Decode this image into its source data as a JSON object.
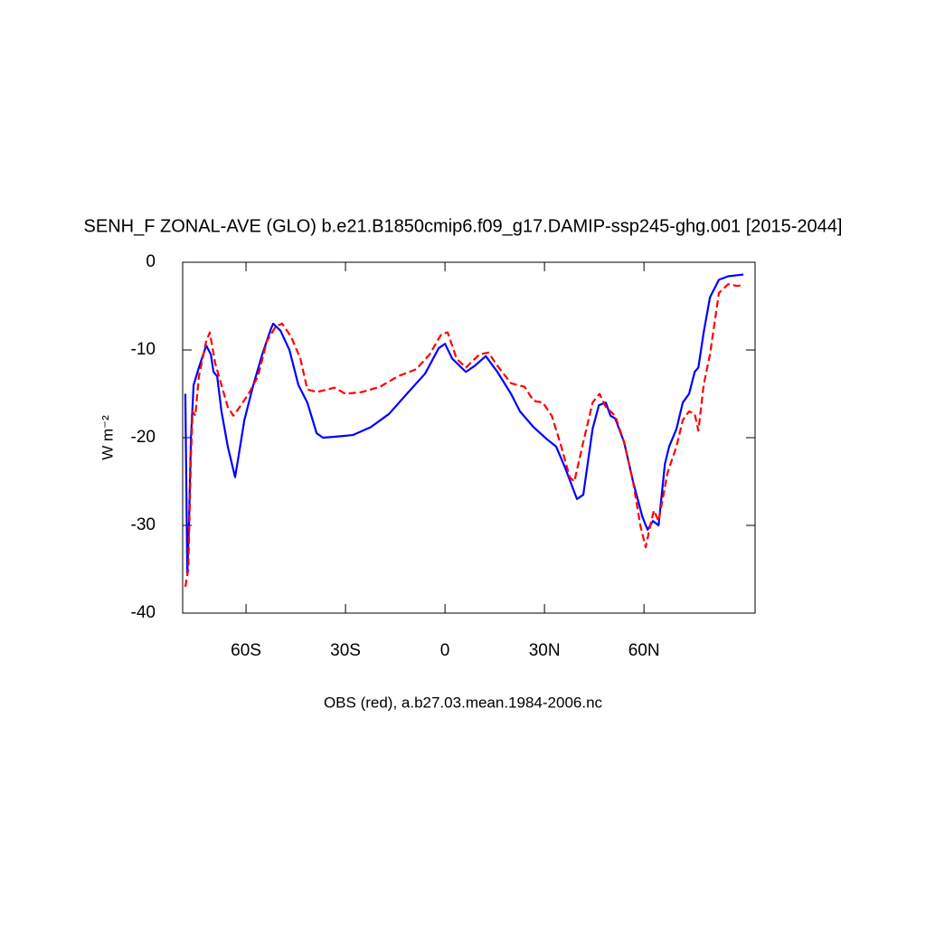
{
  "chart_data": {
    "type": "line",
    "title": "SENH_F ZONAL-AVE (GLO) b.e21.B1850cmip6.f09_g17.DAMIP-ssp245-ghg.001 [2015-2044]",
    "x_label": "OBS (red), a.b27.03.mean.1984-2006.nc",
    "y_label": "W m⁻²",
    "xlim": [
      -79.1,
      93.5
    ],
    "ylim": [
      -40,
      0
    ],
    "xticks": [
      {
        "value": -60,
        "label": "60S"
      },
      {
        "value": -30,
        "label": "30S"
      },
      0,
      {
        "value": 30,
        "label": "30N"
      },
      {
        "value": 60,
        "label": "60N"
      }
    ],
    "yticks": [
      0,
      -10,
      -20,
      -30,
      -40
    ],
    "grid": false,
    "series": [
      {
        "color": "#0000ff",
        "dash": false,
        "x": [
          -78.3,
          -77.7,
          -77.2,
          -76.6,
          -75.8,
          -74.2,
          -72.0,
          -70.6,
          -69.8,
          -68.7,
          -67.4,
          -65.5,
          -63.3,
          -62.2,
          -60.5,
          -57.8,
          -55.1,
          -52.4,
          -51.8,
          -49.6,
          -46.9,
          -44.2,
          -41.5,
          -38.7,
          -36.8,
          -33.3,
          -27.8,
          -22.4,
          -16.9,
          -11.5,
          -6.0,
          -1.9,
          0,
          2.2,
          6.3,
          9.0,
          12.3,
          15.8,
          19.9,
          22.6,
          26.7,
          30.8,
          33.5,
          36.3,
          39.8,
          41.7,
          44.5,
          46.4,
          48.5,
          49.9,
          51.3,
          54.0,
          56.7,
          59.5,
          61.1,
          62.7,
          64.4,
          66.3,
          67.6,
          69.8,
          71.7,
          73.6,
          75.3,
          76.4,
          78.0,
          79.9,
          82.6,
          85.4,
          90.0
        ],
        "values": [
          -15,
          -35.5,
          -30,
          -20,
          -14,
          -12,
          -9.5,
          -10.5,
          -12.5,
          -13,
          -17,
          -21,
          -24.5,
          -22,
          -18,
          -14,
          -10.5,
          -7.5,
          -7,
          -7.8,
          -10,
          -14,
          -16,
          -19.5,
          -20,
          -19.9,
          -19.7,
          -18.8,
          -17.3,
          -15,
          -12.7,
          -9.8,
          -9.3,
          -11,
          -12.5,
          -11.8,
          -10.7,
          -12.5,
          -15,
          -17,
          -18.8,
          -20.2,
          -21,
          -23.5,
          -27,
          -26.5,
          -19,
          -16.3,
          -16,
          -17.5,
          -17.8,
          -20.5,
          -25,
          -29,
          -30.5,
          -29.5,
          -30,
          -23,
          -21,
          -19,
          -16,
          -15,
          -12.5,
          -12,
          -8,
          -4,
          -2,
          -1.6,
          -1.4
        ]
      },
      {
        "color": "#ff0000",
        "dash": true,
        "x": [
          -78.3,
          -77.4,
          -76.6,
          -76.1,
          -75.3,
          -74.2,
          -72.0,
          -70.9,
          -69.3,
          -67.4,
          -65.5,
          -63.8,
          -61.9,
          -59.2,
          -56.4,
          -53.7,
          -51.0,
          -49.1,
          -46.4,
          -43.6,
          -41.5,
          -38.7,
          -33.3,
          -30.0,
          -25.1,
          -19.6,
          -14.2,
          -8.7,
          -4.6,
          -1.1,
          0.8,
          3.5,
          6.3,
          10.4,
          13.1,
          15.8,
          19.9,
          24.0,
          26.7,
          29.5,
          32.2,
          34.9,
          37.6,
          39.0,
          41.7,
          44.5,
          46.6,
          48.5,
          51.3,
          54.0,
          56.7,
          58.9,
          60.5,
          62.2,
          63.0,
          64.4,
          67.1,
          69.8,
          71.7,
          73.6,
          75.3,
          76.4,
          78.0,
          79.9,
          82.6,
          85.4,
          88.1,
          90.0
        ],
        "values": [
          -37,
          -35,
          -22,
          -17,
          -17.5,
          -13,
          -9,
          -8,
          -11.5,
          -14,
          -16.5,
          -17.5,
          -16.5,
          -15,
          -13,
          -9,
          -7.3,
          -7,
          -8.5,
          -11,
          -14.5,
          -14.8,
          -14.3,
          -15,
          -14.8,
          -14.2,
          -13,
          -12.2,
          -10.5,
          -8.2,
          -8,
          -11,
          -12,
          -10.5,
          -10.3,
          -11.8,
          -13.8,
          -14.2,
          -15.8,
          -16,
          -17.5,
          -20.8,
          -24.5,
          -25,
          -20.5,
          -16,
          -15,
          -16.5,
          -17.5,
          -20.5,
          -25,
          -30,
          -32.5,
          -29.5,
          -28.3,
          -29.5,
          -24,
          -21,
          -18,
          -17,
          -17.3,
          -19.2,
          -14,
          -10.5,
          -3.5,
          -2.5,
          -2.7,
          -2.6
        ]
      }
    ]
  }
}
